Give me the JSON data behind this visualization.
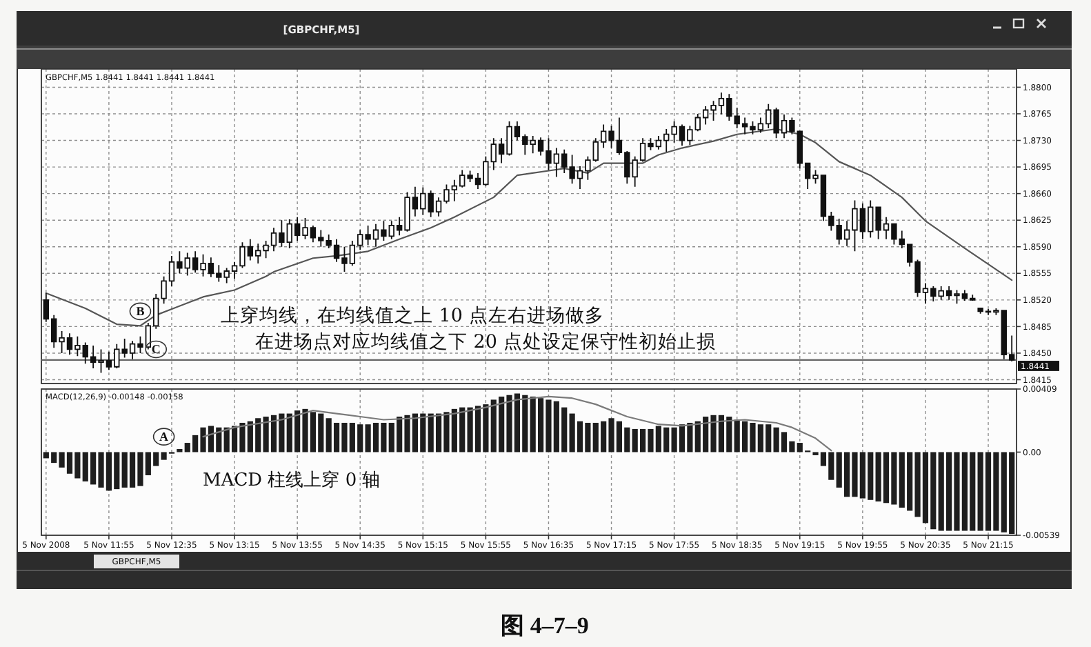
{
  "chart_data": [
    {
      "type": "candlestick",
      "title": "[GBPCHF,M5]",
      "subtitle": "GBPCHF,M5  1.8441 1.8441 1.8441 1.8441",
      "x": [
        "2008-11-05T11:15",
        "2008-11-05T11:20",
        "2008-11-05T11:25",
        "2008-11-05T11:30",
        "2008-11-05T11:35",
        "2008-11-05T11:40",
        "2008-11-05T11:45",
        "2008-11-05T11:50",
        "2008-11-05T11:55",
        "2008-11-05T12:00",
        "2008-11-05T12:05",
        "2008-11-05T12:10",
        "2008-11-05T12:15",
        "2008-11-05T12:20",
        "2008-11-05T12:25",
        "2008-11-05T12:30",
        "2008-11-05T12:35",
        "2008-11-05T12:40",
        "2008-11-05T12:45",
        "2008-11-05T12:50",
        "2008-11-05T12:55",
        "2008-11-05T13:00",
        "2008-11-05T13:05",
        "2008-11-05T13:10",
        "2008-11-05T13:15",
        "2008-11-05T13:20",
        "2008-11-05T13:25",
        "2008-11-05T13:30",
        "2008-11-05T13:35",
        "2008-11-05T13:40",
        "2008-11-05T13:45",
        "2008-11-05T13:50",
        "2008-11-05T13:55",
        "2008-11-05T14:00",
        "2008-11-05T14:05",
        "2008-11-05T14:10",
        "2008-11-05T14:15",
        "2008-11-05T14:20",
        "2008-11-05T14:25",
        "2008-11-05T14:30",
        "2008-11-05T14:35",
        "2008-11-05T14:40",
        "2008-11-05T14:45",
        "2008-11-05T14:50",
        "2008-11-05T14:55",
        "2008-11-05T15:00",
        "2008-11-05T15:05",
        "2008-11-05T15:10",
        "2008-11-05T15:15",
        "2008-11-05T15:20",
        "2008-11-05T15:25",
        "2008-11-05T15:30",
        "2008-11-05T15:35",
        "2008-11-05T15:40",
        "2008-11-05T15:45",
        "2008-11-05T15:50",
        "2008-11-05T15:55",
        "2008-11-05T16:00",
        "2008-11-05T16:05",
        "2008-11-05T16:10",
        "2008-11-05T16:15",
        "2008-11-05T16:20",
        "2008-11-05T16:25",
        "2008-11-05T16:30",
        "2008-11-05T16:35",
        "2008-11-05T16:40",
        "2008-11-05T16:45",
        "2008-11-05T16:50",
        "2008-11-05T16:55",
        "2008-11-05T17:00",
        "2008-11-05T17:05",
        "2008-11-05T17:10",
        "2008-11-05T17:15",
        "2008-11-05T17:20",
        "2008-11-05T17:25",
        "2008-11-05T17:30",
        "2008-11-05T17:35",
        "2008-11-05T17:40",
        "2008-11-05T17:45",
        "2008-11-05T17:50",
        "2008-11-05T17:55",
        "2008-11-05T18:00",
        "2008-11-05T18:05",
        "2008-11-05T18:10",
        "2008-11-05T18:15",
        "2008-11-05T18:20",
        "2008-11-05T18:25",
        "2008-11-05T18:30",
        "2008-11-05T18:35",
        "2008-11-05T18:40",
        "2008-11-05T18:45",
        "2008-11-05T18:50",
        "2008-11-05T18:55",
        "2008-11-05T19:00",
        "2008-11-05T19:05",
        "2008-11-05T19:10",
        "2008-11-05T19:15",
        "2008-11-05T19:20",
        "2008-11-05T19:25",
        "2008-11-05T19:30",
        "2008-11-05T19:35",
        "2008-11-05T19:40",
        "2008-11-05T19:45",
        "2008-11-05T19:50",
        "2008-11-05T19:55",
        "2008-11-05T20:00",
        "2008-11-05T20:05",
        "2008-11-05T20:10",
        "2008-11-05T20:15",
        "2008-11-05T20:20",
        "2008-11-05T20:25",
        "2008-11-05T20:30",
        "2008-11-05T20:35",
        "2008-11-05T20:40",
        "2008-11-05T20:45",
        "2008-11-05T20:50",
        "2008-11-05T20:55",
        "2008-11-05T21:00",
        "2008-11-05T21:05",
        "2008-11-05T21:10",
        "2008-11-05T21:15",
        "2008-11-05T21:20",
        "2008-11-05T21:25",
        "2008-11-05T21:30"
      ],
      "ohlc": [
        [
          1.852,
          1.8529,
          1.8491,
          1.8495
        ],
        [
          1.8495,
          1.85,
          1.8457,
          1.8465
        ],
        [
          1.8465,
          1.8479,
          1.845,
          1.847
        ],
        [
          1.847,
          1.8476,
          1.8448,
          1.8455
        ],
        [
          1.8455,
          1.8472,
          1.8446,
          1.846
        ],
        [
          1.846,
          1.8464,
          1.8436,
          1.8445
        ],
        [
          1.8445,
          1.846,
          1.843,
          1.8438
        ],
        [
          1.8438,
          1.8455,
          1.8424,
          1.844
        ],
        [
          1.844,
          1.8452,
          1.8428,
          1.8432
        ],
        [
          1.8432,
          1.8462,
          1.843,
          1.8455
        ],
        [
          1.8455,
          1.8469,
          1.8444,
          1.845
        ],
        [
          1.845,
          1.8466,
          1.8442,
          1.8462
        ],
        [
          1.8462,
          1.8472,
          1.845,
          1.8458
        ],
        [
          1.8458,
          1.849,
          1.8455,
          1.8486
        ],
        [
          1.8486,
          1.8528,
          1.8482,
          1.8522
        ],
        [
          1.8522,
          1.8551,
          1.8515,
          1.8545
        ],
        [
          1.8545,
          1.8578,
          1.8538,
          1.857
        ],
        [
          1.857,
          1.8584,
          1.8555,
          1.8562
        ],
        [
          1.8562,
          1.8582,
          1.8552,
          1.8575
        ],
        [
          1.8575,
          1.8584,
          1.8556,
          1.856
        ],
        [
          1.856,
          1.858,
          1.8551,
          1.8568
        ],
        [
          1.8568,
          1.8576,
          1.855,
          1.8555
        ],
        [
          1.8555,
          1.8566,
          1.8544,
          1.855
        ],
        [
          1.855,
          1.8562,
          1.8542,
          1.8558
        ],
        [
          1.8558,
          1.857,
          1.8548,
          1.8565
        ],
        [
          1.8565,
          1.8596,
          1.8562,
          1.859
        ],
        [
          1.859,
          1.86,
          1.8572,
          1.8578
        ],
        [
          1.8578,
          1.8594,
          1.8568,
          1.8585
        ],
        [
          1.8585,
          1.8598,
          1.8575,
          1.8592
        ],
        [
          1.8592,
          1.8615,
          1.8584,
          1.8608
        ],
        [
          1.8608,
          1.8625,
          1.859,
          1.8596
        ],
        [
          1.8596,
          1.8626,
          1.8588,
          1.862
        ],
        [
          1.862,
          1.8629,
          1.8598,
          1.8605
        ],
        [
          1.8605,
          1.8628,
          1.86,
          1.8615
        ],
        [
          1.8615,
          1.8618,
          1.8596,
          1.8602
        ],
        [
          1.8602,
          1.8612,
          1.859,
          1.8598
        ],
        [
          1.8598,
          1.8606,
          1.8588,
          1.8592
        ],
        [
          1.8592,
          1.86,
          1.857,
          1.8575
        ],
        [
          1.8575,
          1.859,
          1.8557,
          1.8568
        ],
        [
          1.8568,
          1.8598,
          1.8565,
          1.8592
        ],
        [
          1.8592,
          1.8612,
          1.8586,
          1.8606
        ],
        [
          1.8606,
          1.8618,
          1.8592,
          1.86
        ],
        [
          1.86,
          1.862,
          1.859,
          1.8612
        ],
        [
          1.8612,
          1.8624,
          1.8598,
          1.8604
        ],
        [
          1.8604,
          1.8624,
          1.86,
          1.8618
        ],
        [
          1.8618,
          1.8629,
          1.8605,
          1.8612
        ],
        [
          1.8612,
          1.8662,
          1.861,
          1.8655
        ],
        [
          1.8655,
          1.8669,
          1.863,
          1.864
        ],
        [
          1.864,
          1.8668,
          1.8632,
          1.866
        ],
        [
          1.866,
          1.8664,
          1.8629,
          1.8636
        ],
        [
          1.8636,
          1.8655,
          1.863,
          1.865
        ],
        [
          1.865,
          1.8672,
          1.8647,
          1.8665
        ],
        [
          1.8665,
          1.8678,
          1.865,
          1.867
        ],
        [
          1.867,
          1.8691,
          1.8668,
          1.8684
        ],
        [
          1.8684,
          1.869,
          1.8675,
          1.868
        ],
        [
          1.868,
          1.8687,
          1.8666,
          1.8672
        ],
        [
          1.8672,
          1.8709,
          1.867,
          1.8702
        ],
        [
          1.8702,
          1.8733,
          1.8691,
          1.8725
        ],
        [
          1.8725,
          1.8733,
          1.87,
          1.8712
        ],
        [
          1.8712,
          1.8755,
          1.871,
          1.8748
        ],
        [
          1.8748,
          1.8755,
          1.873,
          1.8735
        ],
        [
          1.8735,
          1.8738,
          1.8711,
          1.8725
        ],
        [
          1.8725,
          1.8736,
          1.8713,
          1.873
        ],
        [
          1.873,
          1.8734,
          1.871,
          1.8716
        ],
        [
          1.8716,
          1.8733,
          1.8691,
          1.87
        ],
        [
          1.87,
          1.872,
          1.8682,
          1.8712
        ],
        [
          1.8712,
          1.8718,
          1.8687,
          1.8695
        ],
        [
          1.8695,
          1.8711,
          1.8673,
          1.868
        ],
        [
          1.868,
          1.8696,
          1.8666,
          1.869
        ],
        [
          1.869,
          1.8709,
          1.8678,
          1.8704
        ],
        [
          1.8704,
          1.8733,
          1.8702,
          1.8728
        ],
        [
          1.8728,
          1.8751,
          1.872,
          1.8742
        ],
        [
          1.8742,
          1.8749,
          1.872,
          1.873
        ],
        [
          1.873,
          1.876,
          1.8711,
          1.8714
        ],
        [
          1.8714,
          1.8716,
          1.8673,
          1.8682
        ],
        [
          1.8682,
          1.8709,
          1.8669,
          1.8704
        ],
        [
          1.8704,
          1.8733,
          1.8702,
          1.8726
        ],
        [
          1.8726,
          1.8733,
          1.8717,
          1.8722
        ],
        [
          1.8722,
          1.8736,
          1.8718,
          1.873
        ],
        [
          1.873,
          1.8745,
          1.8715,
          1.8738
        ],
        [
          1.8738,
          1.8755,
          1.8727,
          1.8748
        ],
        [
          1.8748,
          1.8751,
          1.8723,
          1.873
        ],
        [
          1.873,
          1.8749,
          1.8724,
          1.8744
        ],
        [
          1.8744,
          1.8765,
          1.8742,
          1.876
        ],
        [
          1.876,
          1.8775,
          1.8751,
          1.877
        ],
        [
          1.877,
          1.8782,
          1.8756,
          1.8776
        ],
        [
          1.8776,
          1.8793,
          1.8764,
          1.8785
        ],
        [
          1.8785,
          1.8791,
          1.8756,
          1.8762
        ],
        [
          1.8762,
          1.8773,
          1.8746,
          1.8752
        ],
        [
          1.8752,
          1.876,
          1.8738,
          1.8748
        ],
        [
          1.8748,
          1.8755,
          1.8738,
          1.8744
        ],
        [
          1.8744,
          1.876,
          1.874,
          1.8752
        ],
        [
          1.8752,
          1.8778,
          1.8746,
          1.877
        ],
        [
          1.877,
          1.8773,
          1.8733,
          1.874
        ],
        [
          1.874,
          1.8764,
          1.8733,
          1.8756
        ],
        [
          1.8756,
          1.876,
          1.8738,
          1.8742
        ],
        [
          1.8742,
          1.8742,
          1.8693,
          1.87
        ],
        [
          1.87,
          1.87,
          1.8666,
          1.868
        ],
        [
          1.868,
          1.8691,
          1.8673,
          1.8684
        ],
        [
          1.8684,
          1.8684,
          1.8624,
          1.863
        ],
        [
          1.863,
          1.8636,
          1.8611,
          1.8618
        ],
        [
          1.8618,
          1.8627,
          1.8593,
          1.86
        ],
        [
          1.86,
          1.8624,
          1.8591,
          1.8612
        ],
        [
          1.8612,
          1.8651,
          1.8584,
          1.864
        ],
        [
          1.864,
          1.8647,
          1.86,
          1.861
        ],
        [
          1.861,
          1.8651,
          1.8602,
          1.8642
        ],
        [
          1.8642,
          1.8642,
          1.86,
          1.8612
        ],
        [
          1.8612,
          1.8629,
          1.86,
          1.862
        ],
        [
          1.862,
          1.862,
          1.8593,
          1.86
        ],
        [
          1.86,
          1.8611,
          1.8588,
          1.8593
        ],
        [
          1.8593,
          1.8593,
          1.8564,
          1.857
        ],
        [
          1.857,
          1.8573,
          1.8524,
          1.853
        ],
        [
          1.853,
          1.8542,
          1.8515,
          1.8535
        ],
        [
          1.8535,
          1.8538,
          1.8518,
          1.8525
        ],
        [
          1.8525,
          1.8538,
          1.852,
          1.8532
        ],
        [
          1.8532,
          1.8538,
          1.852,
          1.8526
        ],
        [
          1.8526,
          1.8533,
          1.8515,
          1.8528
        ],
        [
          1.8528,
          1.8533,
          1.8519,
          1.8522
        ],
        [
          1.8522,
          1.8527,
          1.8519,
          1.852
        ],
        [
          1.8509,
          1.8509,
          1.8502,
          1.8505
        ],
        [
          1.8505,
          1.8508,
          1.85,
          1.8504
        ],
        [
          1.8504,
          1.8509,
          1.85,
          1.8506
        ],
        [
          1.8506,
          1.8506,
          1.8442,
          1.8448
        ],
        [
          1.8448,
          1.8473,
          1.8439,
          1.8441
        ]
      ],
      "color": "#111111",
      "series": [
        {
          "type": "line",
          "color": "#555555",
          "x": [
            "2008-11-05T11:15",
            "2008-11-05T11:40",
            "2008-11-05T12:00",
            "2008-11-05T12:15",
            "2008-11-05T12:25",
            "2008-11-05T12:55",
            "2008-11-05T13:15",
            "2008-11-05T13:35",
            "2008-11-05T13:40",
            "2008-11-05T14:05",
            "2008-11-05T14:20",
            "2008-11-05T14:40",
            "2008-11-05T15:00",
            "2008-11-05T15:20",
            "2008-11-05T15:35",
            "2008-11-05T16:00",
            "2008-11-05T16:15",
            "2008-11-05T16:45",
            "2008-11-05T17:00",
            "2008-11-05T17:10",
            "2008-11-05T17:35",
            "2008-11-05T17:45",
            "2008-11-05T18:00",
            "2008-11-05T18:20",
            "2008-11-05T18:35",
            "2008-11-05T19:00",
            "2008-11-05T19:15",
            "2008-11-05T19:25",
            "2008-11-05T19:40",
            "2008-11-05T20:00",
            "2008-11-05T20:20",
            "2008-11-05T20:35",
            "2008-11-05T21:00",
            "2008-11-05T21:30"
          ],
          "values": [
            1.8529,
            1.8509,
            1.8488,
            1.8486,
            1.85,
            1.8524,
            1.8533,
            1.8551,
            1.8557,
            1.8575,
            1.8578,
            1.8584,
            1.86,
            1.8615,
            1.8629,
            1.8655,
            1.8684,
            1.8693,
            1.8687,
            1.87,
            1.87,
            1.8711,
            1.872,
            1.8729,
            1.8738,
            1.8745,
            1.8738,
            1.8727,
            1.8702,
            1.8684,
            1.8655,
            1.8624,
            1.8588,
            1.8546
          ]
        }
      ],
      "xlim": [
        "2008-11-05T11:12",
        "2008-11-05T21:33"
      ],
      "xticks": [
        {
          "value": "2008-11-05T11:15",
          "label": null
        },
        {
          "value": "2008-11-05T11:55",
          "label": null
        },
        {
          "value": "2008-11-05T12:35",
          "label": null
        },
        {
          "value": "2008-11-05T13:15",
          "label": null
        },
        {
          "value": "2008-11-05T13:55",
          "label": null
        },
        {
          "value": "2008-11-05T14:35",
          "label": null
        },
        {
          "value": "2008-11-05T15:15",
          "label": null
        },
        {
          "value": "2008-11-05T15:55",
          "label": null
        },
        {
          "value": "2008-11-05T16:35",
          "label": null
        },
        {
          "value": "2008-11-05T17:15",
          "label": null
        },
        {
          "value": "2008-11-05T17:55",
          "label": null
        },
        {
          "value": "2008-11-05T18:35",
          "label": null
        },
        {
          "value": "2008-11-05T19:15",
          "label": null
        },
        {
          "value": "2008-11-05T19:55",
          "label": null
        },
        {
          "value": "2008-11-05T20:35",
          "label": null
        },
        {
          "value": "2008-11-05T21:15",
          "label": null
        }
      ],
      "ylim": [
        1.841,
        1.8824
      ],
      "yticks": [
        1.8415,
        {
          "value": 1.845,
          "label": "1.8450"
        },
        1.8485,
        {
          "value": 1.852,
          "label": "1.8520"
        },
        1.8555,
        {
          "value": 1.859,
          "label": "1.8590"
        },
        1.8625,
        {
          "value": 1.866,
          "label": "1.8660"
        },
        1.8695,
        {
          "value": 1.873,
          "label": "1.8730"
        },
        1.8765,
        {
          "value": 1.88,
          "label": "1.8800"
        }
      ],
      "grid": true,
      "tick_labels": "y",
      "ref_lines": [
        {
          "axis": "y",
          "value": 1.8441,
          "label": "1.8441",
          "color": "#666666"
        }
      ],
      "annotations": [
        "上穿均线，在均线值之上 10 点左右进场做多",
        "在进场点对应均线值之下 20 点处设定保守性初始止损",
        {
          "text": "B",
          "x": "2008-11-05T12:15",
          "y": 1.8505
        },
        {
          "text": "C",
          "x": "2008-11-05T12:25",
          "y": 1.8455
        },
        "图 4–7–9",
        "GBPCHF,M5"
      ]
    },
    {
      "type": "bar",
      "title": "MACD(12,26,9) -0.00148 -0.00158",
      "x": [
        "2008-11-05T11:15",
        "2008-11-05T11:20",
        "2008-11-05T11:25",
        "2008-11-05T11:30",
        "2008-11-05T11:35",
        "2008-11-05T11:40",
        "2008-11-05T11:45",
        "2008-11-05T11:50",
        "2008-11-05T11:55",
        "2008-11-05T12:00",
        "2008-11-05T12:05",
        "2008-11-05T12:10",
        "2008-11-05T12:15",
        "2008-11-05T12:20",
        "2008-11-05T12:25",
        "2008-11-05T12:30",
        "2008-11-05T12:35",
        "2008-11-05T12:40",
        "2008-11-05T12:45",
        "2008-11-05T12:50",
        "2008-11-05T12:55",
        "2008-11-05T13:00",
        "2008-11-05T13:05",
        "2008-11-05T13:10",
        "2008-11-05T13:15",
        "2008-11-05T13:20",
        "2008-11-05T13:25",
        "2008-11-05T13:30",
        "2008-11-05T13:35",
        "2008-11-05T13:40",
        "2008-11-05T13:45",
        "2008-11-05T13:50",
        "2008-11-05T13:55",
        "2008-11-05T14:00",
        "2008-11-05T14:05",
        "2008-11-05T14:10",
        "2008-11-05T14:15",
        "2008-11-05T14:20",
        "2008-11-05T14:25",
        "2008-11-05T14:30",
        "2008-11-05T14:35",
        "2008-11-05T14:40",
        "2008-11-05T14:45",
        "2008-11-05T14:50",
        "2008-11-05T14:55",
        "2008-11-05T15:00",
        "2008-11-05T15:05",
        "2008-11-05T15:10",
        "2008-11-05T15:15",
        "2008-11-05T15:20",
        "2008-11-05T15:25",
        "2008-11-05T15:30",
        "2008-11-05T15:35",
        "2008-11-05T15:40",
        "2008-11-05T15:45",
        "2008-11-05T15:50",
        "2008-11-05T15:55",
        "2008-11-05T16:00",
        "2008-11-05T16:05",
        "2008-11-05T16:10",
        "2008-11-05T16:15",
        "2008-11-05T16:20",
        "2008-11-05T16:25",
        "2008-11-05T16:30",
        "2008-11-05T16:35",
        "2008-11-05T16:40",
        "2008-11-05T16:45",
        "2008-11-05T16:50",
        "2008-11-05T16:55",
        "2008-11-05T17:00",
        "2008-11-05T17:05",
        "2008-11-05T17:10",
        "2008-11-05T17:15",
        "2008-11-05T17:20",
        "2008-11-05T17:25",
        "2008-11-05T17:30",
        "2008-11-05T17:35",
        "2008-11-05T17:40",
        "2008-11-05T17:45",
        "2008-11-05T17:50",
        "2008-11-05T17:55",
        "2008-11-05T18:00",
        "2008-11-05T18:05",
        "2008-11-05T18:10",
        "2008-11-05T18:15",
        "2008-11-05T18:20",
        "2008-11-05T18:25",
        "2008-11-05T18:30",
        "2008-11-05T18:35",
        "2008-11-05T18:40",
        "2008-11-05T18:45",
        "2008-11-05T18:50",
        "2008-11-05T18:55",
        "2008-11-05T19:00",
        "2008-11-05T19:05",
        "2008-11-05T19:10",
        "2008-11-05T19:15",
        "2008-11-05T19:20",
        "2008-11-05T19:25",
        "2008-11-05T19:30",
        "2008-11-05T19:35",
        "2008-11-05T19:40",
        "2008-11-05T19:45",
        "2008-11-05T19:50",
        "2008-11-05T19:55",
        "2008-11-05T20:00",
        "2008-11-05T20:05",
        "2008-11-05T20:10",
        "2008-11-05T20:15",
        "2008-11-05T20:20",
        "2008-11-05T20:25",
        "2008-11-05T20:30",
        "2008-11-05T20:35",
        "2008-11-05T20:40",
        "2008-11-05T20:45",
        "2008-11-05T20:50",
        "2008-11-05T20:55",
        "2008-11-05T21:00",
        "2008-11-05T21:05",
        "2008-11-05T21:10",
        "2008-11-05T21:15",
        "2008-11-05T21:20",
        "2008-11-05T21:25",
        "2008-11-05T21:30"
      ],
      "series": [
        {
          "color": "#1e1e1e",
          "values": [
            -0.0004,
            -0.0007,
            -0.001,
            -0.0014,
            -0.0017,
            -0.0019,
            -0.0021,
            -0.0023,
            -0.0025,
            -0.0024,
            -0.0023,
            -0.0023,
            -0.0022,
            -0.0015,
            -0.0009,
            -0.0005,
            -0.0001,
            0.0002,
            0.0006,
            0.0011,
            0.0016,
            0.0017,
            0.0016,
            0.0016,
            0.0017,
            0.0019,
            0.002,
            0.0022,
            0.0023,
            0.0024,
            0.0025,
            0.0025,
            0.0027,
            0.0028,
            0.0026,
            0.0025,
            0.0022,
            0.0019,
            0.0019,
            0.0019,
            0.0018,
            0.0018,
            0.0019,
            0.0019,
            0.0019,
            0.0023,
            0.0024,
            0.0025,
            0.0025,
            0.0025,
            0.0025,
            0.0026,
            0.0028,
            0.0029,
            0.0029,
            0.003,
            0.0031,
            0.0034,
            0.0036,
            0.0037,
            0.0038,
            0.0037,
            0.0036,
            0.0035,
            0.0034,
            0.0033,
            0.0029,
            0.0025,
            0.002,
            0.0019,
            0.0019,
            0.002,
            0.0022,
            0.002,
            0.0016,
            0.0015,
            0.0015,
            0.0015,
            0.0017,
            0.0016,
            0.0016,
            0.0018,
            0.0019,
            0.002,
            0.0023,
            0.0024,
            0.0024,
            0.0023,
            0.0021,
            0.002,
            0.0019,
            0.0018,
            0.0018,
            0.0016,
            0.0013,
            0.0007,
            0.0006,
            0.0001,
            -0.0002,
            -0.0009,
            -0.0018,
            -0.0023,
            -0.0029,
            -0.0029,
            -0.003,
            -0.0031,
            -0.0032,
            -0.0033,
            -0.0034,
            -0.0036,
            -0.0038,
            -0.0042,
            -0.0046,
            -0.005,
            -0.0051,
            -0.0051,
            -0.0051,
            -0.0051,
            -0.0051,
            -0.0051,
            -0.0051,
            -0.0051,
            -0.0052,
            -0.0053
          ]
        },
        {
          "type": "line",
          "color": "#7a7a7a",
          "x": [
            "2008-11-05T12:55",
            "2008-11-05T13:15",
            "2008-11-05T13:45",
            "2008-11-05T14:05",
            "2008-11-05T14:20",
            "2008-11-05T14:35",
            "2008-11-05T14:50",
            "2008-11-05T15:10",
            "2008-11-05T15:35",
            "2008-11-05T15:55",
            "2008-11-05T16:15",
            "2008-11-05T16:35",
            "2008-11-05T16:50",
            "2008-11-05T17:05",
            "2008-11-05T17:25",
            "2008-11-05T17:45",
            "2008-11-05T18:00",
            "2008-11-05T18:25",
            "2008-11-05T18:40",
            "2008-11-05T19:00",
            "2008-11-05T19:10",
            "2008-11-05T19:25",
            "2008-11-05T19:35"
          ],
          "values": [
            0.001,
            0.0016,
            0.0021,
            0.0027,
            0.0025,
            0.0023,
            0.0021,
            0.0022,
            0.0025,
            0.0029,
            0.0034,
            0.0036,
            0.0035,
            0.0031,
            0.0023,
            0.0018,
            0.0017,
            0.002,
            0.0021,
            0.0019,
            0.0016,
            0.0009,
            0.0001
          ]
        }
      ],
      "xlim": [
        "2008-11-05T11:12",
        "2008-11-05T21:33"
      ],
      "xticks": [
        {
          "value": "2008-11-05T11:15",
          "label": "5 Nov 2008"
        },
        {
          "value": "2008-11-05T11:55",
          "label": "5 Nov 11:55"
        },
        {
          "value": "2008-11-05T12:35",
          "label": "5 Nov 12:35"
        },
        {
          "value": "2008-11-05T13:15",
          "label": "5 Nov 13:15"
        },
        {
          "value": "2008-11-05T13:55",
          "label": "5 Nov 13:55"
        },
        {
          "value": "2008-11-05T14:35",
          "label": "5 Nov 14:35"
        },
        {
          "value": "2008-11-05T15:15",
          "label": "5 Nov 15:15"
        },
        {
          "value": "2008-11-05T15:55",
          "label": "5 Nov 15:55"
        },
        {
          "value": "2008-11-05T16:35",
          "label": "5 Nov 16:35"
        },
        {
          "value": "2008-11-05T17:15",
          "label": "5 Nov 17:15"
        },
        {
          "value": "2008-11-05T17:55",
          "label": "5 Nov 17:55"
        },
        {
          "value": "2008-11-05T18:35",
          "label": "5 Nov 18:35"
        },
        {
          "value": "2008-11-05T19:15",
          "label": "5 Nov 19:15"
        },
        {
          "value": "2008-11-05T19:55",
          "label": "5 Nov 19:55"
        },
        {
          "value": "2008-11-05T20:35",
          "label": "5 Nov 20:35"
        },
        {
          "value": "2008-11-05T21:15",
          "label": "5 Nov 21:15"
        }
      ],
      "ylim": [
        -0.00539,
        0.00409
      ],
      "yticks": [
        -0.00539,
        {
          "value": 0,
          "label": "0.00"
        },
        0.00409
      ],
      "grid": "x",
      "annotations": [
        {
          "text": "A",
          "x": "2008-11-05T12:30",
          "y": 0.001
        },
        "MACD 柱线上穿 0 轴"
      ]
    }
  ]
}
